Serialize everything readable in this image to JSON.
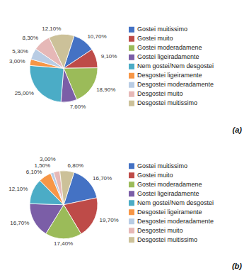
{
  "chart_data": [
    {
      "type": "pie",
      "title": "(a)",
      "categories": [
        "Gostei muitissimo",
        "Gostei muito",
        "Gostei moderadamene",
        "Gostei ligeiradamente",
        "Nem gostei/Nem desgostei",
        "Desgostei ligeiramente",
        "Desgostei moderadamente",
        "Desgostei muito",
        "Desgostei muitissimo"
      ],
      "values": [
        10.7,
        9.1,
        18.9,
        7.6,
        25.0,
        3.0,
        5.3,
        8.3,
        12.1
      ],
      "value_labels": [
        "10,70%",
        "9,10%",
        "18,90%",
        "7,60%",
        "25,00%",
        "3,00%",
        "5,30%",
        "8,30%",
        "12,10%"
      ],
      "colors": [
        "#4472C4",
        "#BE4B48",
        "#9BBB59",
        "#7B5EA7",
        "#4BACC6",
        "#F79646",
        "#B8CCE4",
        "#E6B8B7",
        "#CCC199"
      ],
      "data_labels": true,
      "legend": "right"
    },
    {
      "type": "pie",
      "title": "(b)",
      "categories": [
        "Gostei muitissimo",
        "Gostei muito",
        "Gostei moderadamene",
        "Gostei ligeiradamente",
        "Nem gostei/Nem desgostei",
        "Desgostei ligeiramente",
        "Desgostei moderadamente",
        "Desgostei muito",
        "Desgostei muitissimo"
      ],
      "values": [
        16.7,
        19.7,
        17.4,
        16.7,
        12.1,
        6.1,
        1.5,
        3.0,
        6.8
      ],
      "value_labels": [
        "16,70%",
        "19,70%",
        "17,40%",
        "16,70%",
        "12,10%",
        "6,10%",
        "1,50%",
        "3,00%",
        "6,80%"
      ],
      "colors": [
        "#4472C4",
        "#BE4B48",
        "#9BBB59",
        "#7B5EA7",
        "#4BACC6",
        "#F79646",
        "#B8CCE4",
        "#E6B8B7",
        "#CCC199"
      ],
      "data_labels": true,
      "legend": "right"
    }
  ]
}
